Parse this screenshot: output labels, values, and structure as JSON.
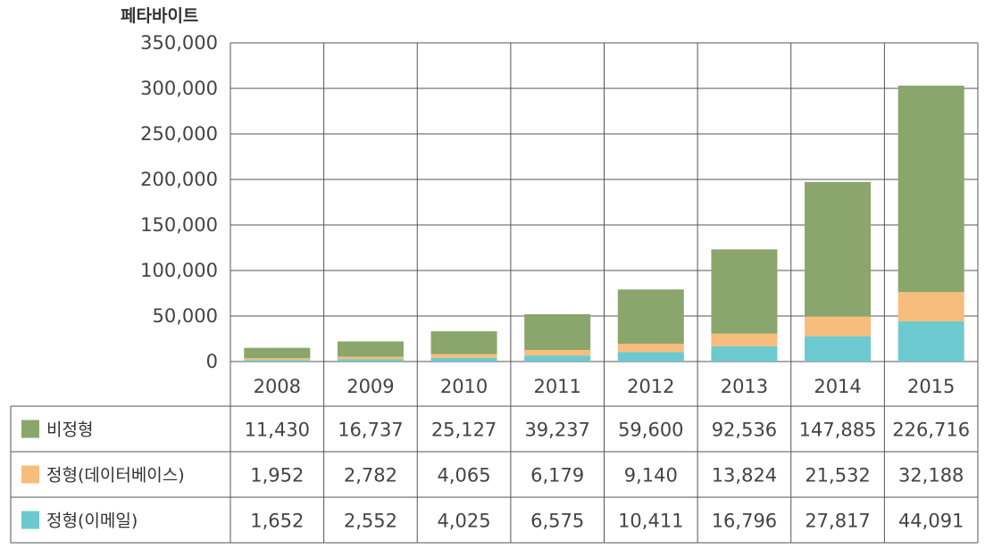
{
  "chart_data": {
    "type": "bar",
    "stacked": true,
    "ylabel": "페타바이트",
    "ylim": [
      0,
      350000
    ],
    "yticks": [
      "0",
      "50,000",
      "100,000",
      "150,000",
      "200,000",
      "250,000",
      "300,000",
      "350,000"
    ],
    "categories": [
      "2008",
      "2009",
      "2010",
      "2011",
      "2012",
      "2013",
      "2014",
      "2015"
    ],
    "series": [
      {
        "name": "정형(이메일)",
        "color": "#6cc9cf",
        "values": [
          1652,
          2552,
          4025,
          6575,
          10411,
          16796,
          27817,
          44091
        ],
        "labels": [
          "1,652",
          "2,552",
          "4,025",
          "6,575",
          "10,411",
          "16,796",
          "27,817",
          "44,091"
        ]
      },
      {
        "name": "정형(데이터베이스)",
        "color": "#f7bd7c",
        "values": [
          1952,
          2782,
          4065,
          6179,
          9140,
          13824,
          21532,
          32188
        ],
        "labels": [
          "1,952",
          "2,782",
          "4,065",
          "6,179",
          "9,140",
          "13,824",
          "21,532",
          "32,188"
        ]
      },
      {
        "name": "비정형",
        "color": "#8aa66c",
        "values": [
          11430,
          16737,
          25127,
          39237,
          59600,
          92536,
          147885,
          226716
        ],
        "labels": [
          "11,430",
          "16,737",
          "25,127",
          "39,237",
          "59,600",
          "92,536",
          "147,885",
          "226,716"
        ]
      }
    ],
    "table_order": [
      2,
      1,
      0
    ],
    "grid": true,
    "legend": "data-table"
  }
}
